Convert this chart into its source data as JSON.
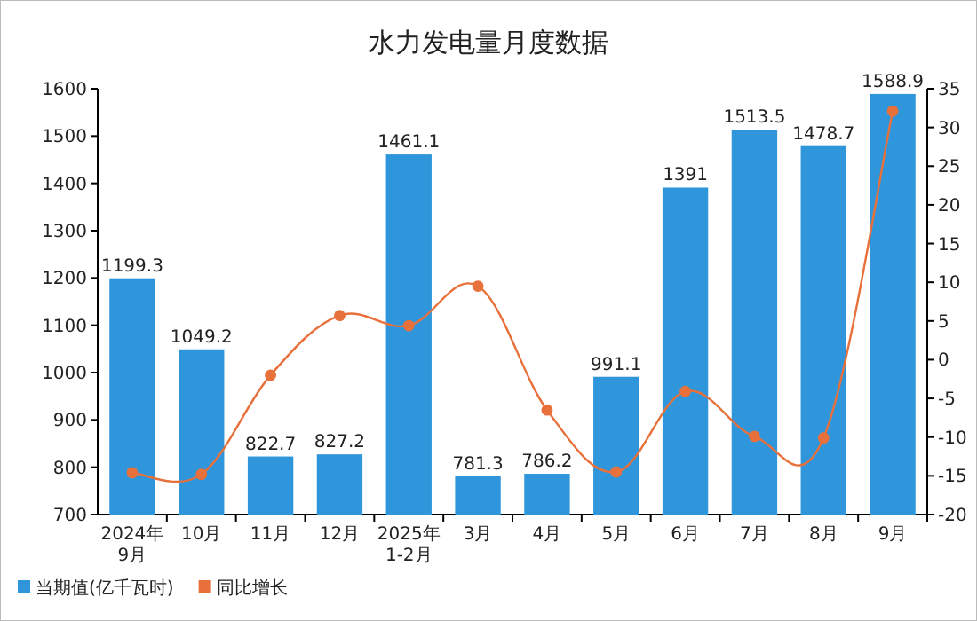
{
  "chart_data": {
    "type": "bar",
    "title": "水力发电量月度数据",
    "categories": [
      "2024年\n9月",
      "10月",
      "11月",
      "12月",
      "2025年\n1-2月",
      "3月",
      "4月",
      "5月",
      "6月",
      "7月",
      "8月",
      "9月"
    ],
    "series": [
      {
        "name": "当期值(亿千瓦时)",
        "color": "#3096dc",
        "values": [
          1199.3,
          1049.2,
          822.7,
          827.2,
          1461.1,
          781.3,
          786.2,
          991.1,
          1391,
          1513.5,
          1478.7,
          1588.9
        ],
        "value_labels": [
          "1199.3",
          "1049.2",
          "822.7",
          "827.2",
          "1461.1",
          "781.3",
          "786.2",
          "991.1",
          "1391",
          "1513.5",
          "1478.7",
          "1588.9"
        ]
      },
      {
        "name": "同比增长",
        "type": "line",
        "axis": "y2",
        "color": "#e8703a",
        "marker": "circle",
        "values": [
          -14.6,
          -14.8,
          -2.0,
          5.7,
          4.4,
          9.5,
          -6.5,
          -14.5,
          -4.1,
          -9.9,
          -10.1,
          32.1
        ]
      }
    ],
    "ylim": [
      700,
      1600
    ],
    "yticks": [
      700,
      800,
      900,
      1000,
      1100,
      1200,
      1300,
      1400,
      1500,
      1600
    ],
    "y2lim": [
      -20,
      35
    ],
    "y2ticks": [
      -20,
      -15,
      -10,
      -5,
      0,
      5,
      10,
      15,
      20,
      25,
      30,
      35
    ],
    "grid": false,
    "legend": "bottom left"
  }
}
